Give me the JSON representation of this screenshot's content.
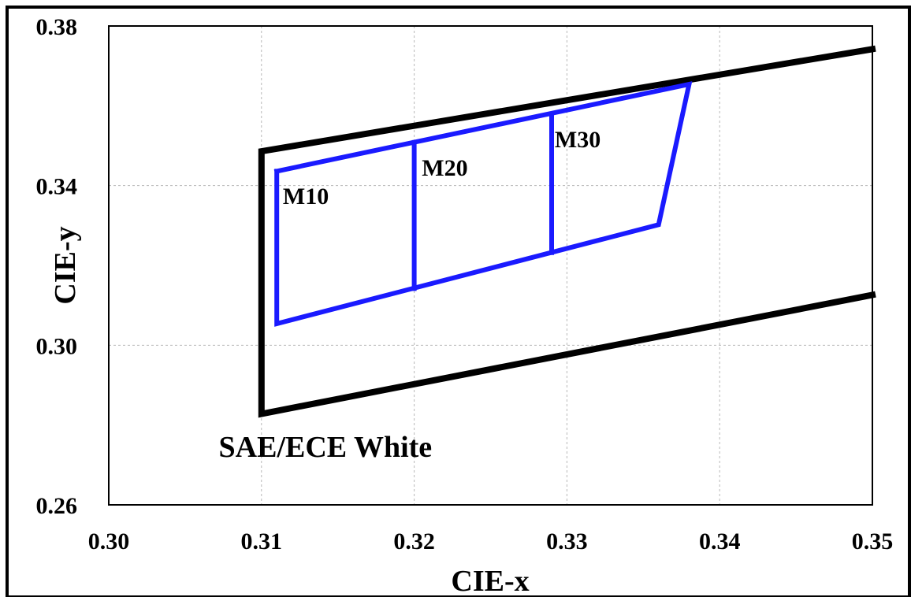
{
  "chart_data": {
    "type": "line",
    "title": "",
    "xlabel": "CIE-x",
    "ylabel": "CIE-y",
    "xlim": [
      0.3,
      0.35
    ],
    "ylim": [
      0.26,
      0.38
    ],
    "x_ticks": [
      "0.30",
      "0.31",
      "0.32",
      "0.33",
      "0.34",
      "0.35"
    ],
    "y_ticks": [
      "0.26",
      "0.30",
      "0.34",
      "0.38"
    ],
    "x_tick_values": [
      0.3,
      0.31,
      0.32,
      0.33,
      0.34,
      0.35
    ],
    "y_tick_values": [
      0.26,
      0.3,
      0.34,
      0.38
    ],
    "grid": true,
    "colors": {
      "boundary": "#000000",
      "regions": "#1a1aff"
    },
    "series": [
      {
        "id": "sae-ece-white",
        "label": "SAE/ECE White",
        "color": "#000000",
        "points": [
          [
            0.35,
            0.3742
          ],
          [
            0.31,
            0.3486
          ],
          [
            0.31,
            0.2828
          ],
          [
            0.35,
            0.3126
          ]
        ]
      },
      {
        "id": "m-outline",
        "color": "#1a1aff",
        "points": [
          [
            0.311,
            0.3436
          ],
          [
            0.338,
            0.3654
          ],
          [
            0.336,
            0.3302
          ],
          [
            0.311,
            0.3054
          ],
          [
            0.311,
            0.3436
          ]
        ]
      },
      {
        "id": "m20-divider",
        "color": "#1a1aff",
        "points": [
          [
            0.32,
            0.3508
          ],
          [
            0.32,
            0.3142
          ]
        ]
      },
      {
        "id": "m30-divider",
        "color": "#1a1aff",
        "points": [
          [
            0.329,
            0.358
          ],
          [
            0.329,
            0.3232
          ]
        ]
      }
    ],
    "annotations": [
      {
        "text": "M10",
        "x": 0.3114,
        "y": 0.3376
      },
      {
        "text": "M20",
        "x": 0.3205,
        "y": 0.3447
      },
      {
        "text": "M30",
        "x": 0.3292,
        "y": 0.3518
      },
      {
        "text": "SAE/ECE White",
        "x": 0.3072,
        "y": 0.2746
      }
    ]
  }
}
